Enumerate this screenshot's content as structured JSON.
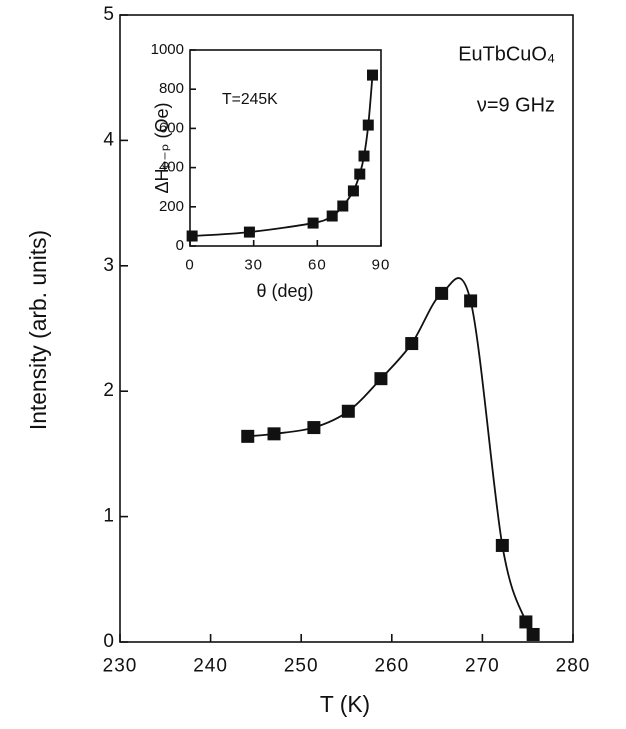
{
  "chart_data": [
    {
      "type": "line",
      "x_label": "T (K)",
      "y_label": "Intensity (arb. units)",
      "annotations": [
        "EuTbCuO₄",
        "ν=9 GHz"
      ],
      "x": [
        244.1,
        247.0,
        251.4,
        255.2,
        258.8,
        262.2,
        265.5,
        268.7,
        272.2,
        274.8,
        275.6
      ],
      "series": [
        {
          "color": "#111111",
          "values": [
            1.64,
            1.66,
            1.71,
            1.84,
            2.1,
            2.38,
            2.78,
            2.72,
            0.77,
            0.16,
            0.06
          ]
        }
      ],
      "xlim": [
        230,
        280
      ],
      "xticks": [
        230,
        240,
        250,
        260,
        270,
        280
      ],
      "ylim": [
        0,
        5
      ],
      "yticks": [
        0,
        1,
        2,
        3,
        4,
        5
      ],
      "marker": "square"
    },
    {
      "type": "line",
      "x_label": "θ  (deg)",
      "y_label": "ΔHₚ₋ₚ (Oe)",
      "annotations": [
        "T=245K"
      ],
      "x": [
        1,
        28,
        58,
        67,
        72,
        77,
        80,
        82,
        84,
        86
      ],
      "series": [
        {
          "color": "#111111",
          "values": [
            51,
            71,
            117,
            153,
            204,
            281,
            367,
            459,
            617,
            872
          ]
        }
      ],
      "xlim": [
        0,
        90
      ],
      "xticks": [
        0,
        30,
        60,
        90
      ],
      "ylim": [
        0,
        1000
      ],
      "yticks": [
        0,
        200,
        400,
        600,
        800,
        1000
      ],
      "marker": "square"
    }
  ]
}
